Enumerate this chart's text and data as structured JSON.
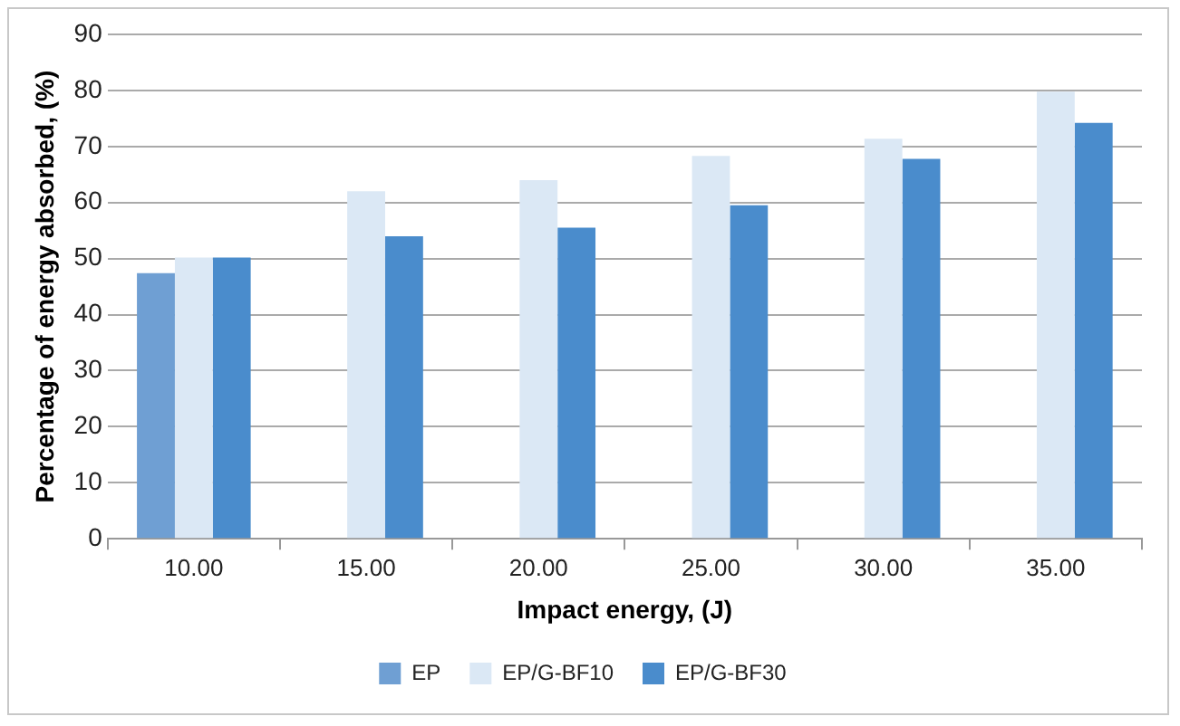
{
  "chart_data": {
    "type": "bar",
    "xlabel": "Impact energy, (J)",
    "ylabel": "Percentage of energy absorbed, (%)",
    "categories": [
      "10.00",
      "15.00",
      "20.00",
      "25.00",
      "30.00",
      "35.00"
    ],
    "series": [
      {
        "name": "EP",
        "color": "#6f9fd3",
        "values": [
          47.4,
          null,
          null,
          null,
          null,
          null
        ]
      },
      {
        "name": "EP/G-BF10",
        "color": "#dbe8f5",
        "values": [
          50.2,
          62,
          64,
          68.3,
          71.4,
          79.8
        ]
      },
      {
        "name": "EP/G-BF30",
        "color": "#4a8ccc",
        "values": [
          50.2,
          54,
          55.5,
          59.5,
          67.8,
          74.2
        ]
      }
    ],
    "ylim": [
      0,
      90
    ],
    "yticks": [
      0,
      10,
      20,
      30,
      40,
      50,
      60,
      70,
      80,
      90
    ],
    "grid": "y",
    "legend": "bottom"
  }
}
